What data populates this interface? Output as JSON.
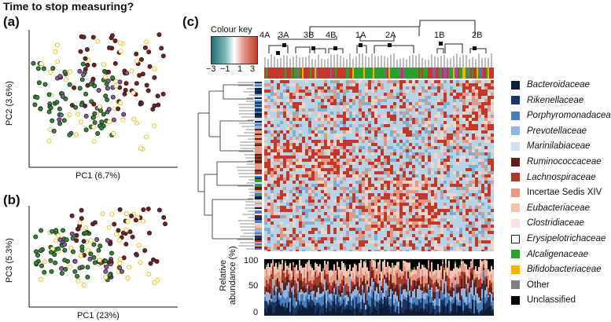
{
  "figure_title": "Time to stop measuring?",
  "panels": {
    "a": {
      "label": "(a)",
      "xlabel": "PC1 (6.7%)",
      "ylabel": "PC2 (3.6%)"
    },
    "b": {
      "label": "(b)",
      "xlabel": "PC1 (23%)",
      "ylabel": "PC3 (5.3%)"
    },
    "c": {
      "label": "(c)"
    }
  },
  "colour_key": {
    "title": "Colour key",
    "ticks": [
      "−3",
      "−1",
      "1",
      "3"
    ],
    "colors": [
      "#1f6f73",
      "#ffffff",
      "#c0392b"
    ]
  },
  "cluster_labels": [
    "4A",
    "3A",
    "3B",
    "4B",
    "1A",
    "2A",
    "1B",
    "2B"
  ],
  "bar_plot": {
    "ylabel_line1": "Relative",
    "ylabel_line2": "abundance (%)",
    "ticks": [
      "100",
      "50",
      "0"
    ]
  },
  "legend": [
    {
      "label": "Bacteroidaceae",
      "color": "#0e1e3a",
      "italic": true
    },
    {
      "label": "Rikenellaceae",
      "color": "#1c3660",
      "italic": true
    },
    {
      "label": "Porphyromonadaceae",
      "color": "#4a7fbf",
      "italic": true
    },
    {
      "label": "Prevotellaceae",
      "color": "#93b5dc",
      "italic": true
    },
    {
      "label": "Marinilabiaceae",
      "color": "#cfe0f2",
      "italic": true
    },
    {
      "label": "Ruminococcaceae",
      "color": "#5c1f1a",
      "italic": true
    },
    {
      "label": "Lachnospiraceae",
      "color": "#a63a2b",
      "italic": true
    },
    {
      "label": "Incertae Sedis XIV",
      "color": "#e29a84",
      "italic": false
    },
    {
      "label": "Eubacteriaceae",
      "color": "#f2c4b4",
      "italic": true
    },
    {
      "label": "Clostridiaceae",
      "color": "#f8e2da",
      "italic": true
    },
    {
      "label": "Erysipelotrichaceae",
      "color": "#ffffff",
      "italic": true
    },
    {
      "label": "Alcaligenaceae",
      "color": "#2ca02c",
      "italic": true
    },
    {
      "label": "Bifidobacteriaceae",
      "color": "#f0b400",
      "italic": true
    },
    {
      "label": "Other",
      "color": "#808080",
      "italic": false
    },
    {
      "label": "Unclassified",
      "color": "#000000",
      "italic": false
    }
  ],
  "series_colors": {
    "dark_red": "#7b1d1d",
    "green": "#2e8b2e",
    "yellow_open": "#e8b800",
    "purple": "#8a5aa0"
  }
}
